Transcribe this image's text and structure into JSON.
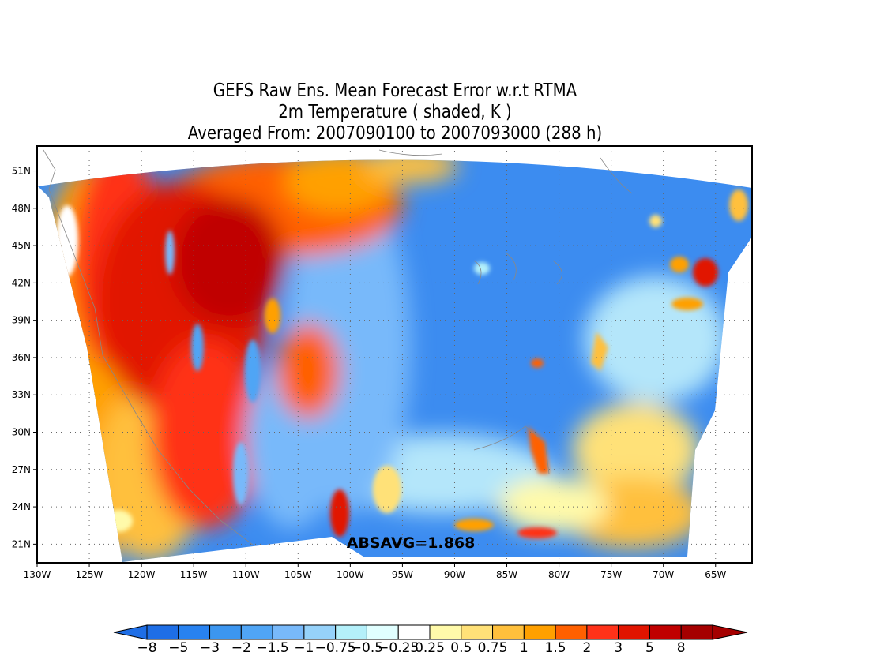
{
  "title": {
    "line1": "GEFS Raw Ens. Mean Forecast Error w.r.t RTMA",
    "line2": "2m Temperature ( shaded, K )",
    "line3": "Averaged From: 2007090100 to 2007093000 (288 h)"
  },
  "map": {
    "region": "Contiguous United States",
    "lat_range": [
      19.5,
      53
    ],
    "lon_range": [
      -130,
      -61.5
    ],
    "lat_ticks": [
      "21N",
      "24N",
      "27N",
      "30N",
      "33N",
      "36N",
      "39N",
      "42N",
      "45N",
      "48N",
      "51N"
    ],
    "lon_ticks": [
      "130W",
      "125W",
      "120W",
      "115W",
      "110W",
      "105W",
      "100W",
      "95W",
      "90W",
      "85W",
      "80W",
      "75W",
      "70W",
      "65W"
    ],
    "grid": "dotted",
    "annotation": "ABSAVG=1.868",
    "pattern": "Warm (positive) errors over the western mountains and Pacific; cold (negative) errors over the central and eastern US"
  },
  "colorbar": {
    "labels": [
      "−8",
      "−5",
      "−3",
      "−2",
      "−1.5",
      "−1",
      "−0.75",
      "−0.5",
      "−0.25",
      "0.25",
      "0.5",
      "0.75",
      "1",
      "1.5",
      "2",
      "3",
      "5",
      "8"
    ],
    "colors": [
      "#1e6ee6",
      "#2882f0",
      "#3c96f0",
      "#50a5f5",
      "#78b9fa",
      "#96d2fa",
      "#b4f0fa",
      "#e1ffff",
      "#ffffff",
      "#fffaaa",
      "#ffe178",
      "#ffc03c",
      "#ffa000",
      "#ff6000",
      "#ff3219",
      "#e11400",
      "#c00000",
      "#a50000"
    ],
    "under_color": "#1e6ee6",
    "over_color": "#a50000"
  }
}
